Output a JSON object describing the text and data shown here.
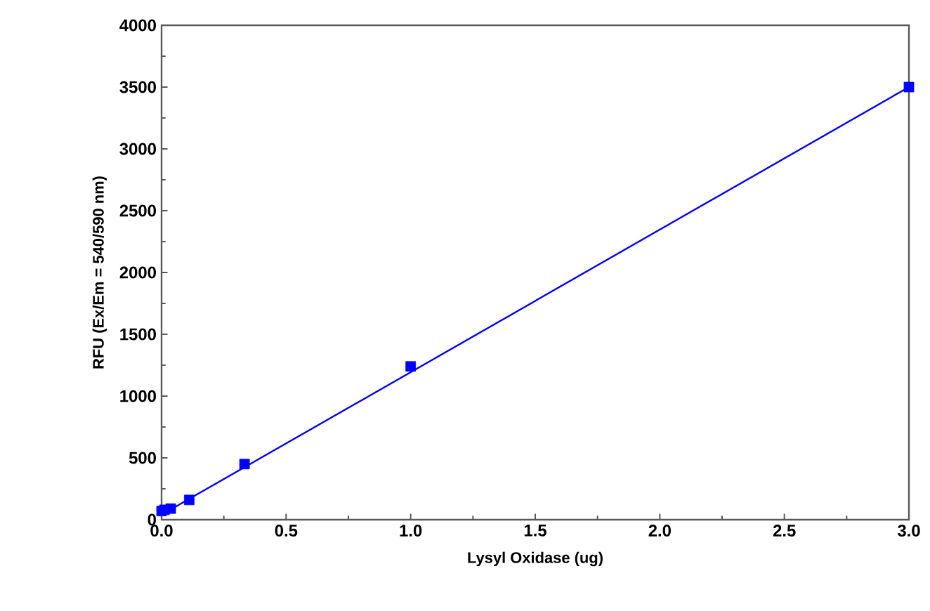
{
  "chart_data": {
    "type": "scatter",
    "xlabel": "Lysyl Oxidase (ug)",
    "ylabel": "RFU (Ex/Em = 540/590 nm)",
    "xlim": [
      0,
      3
    ],
    "ylim": [
      0,
      4000
    ],
    "xticks": [
      {
        "value": 0,
        "label": "0.0"
      },
      {
        "value": 0.5,
        "label": "0.5"
      },
      {
        "value": 1,
        "label": "1.0"
      },
      {
        "value": 1.5,
        "label": "1.5"
      },
      {
        "value": 2,
        "label": "2.0"
      },
      {
        "value": 2.5,
        "label": "2.5"
      },
      {
        "value": 3,
        "label": "3.0"
      }
    ],
    "yticks": [
      0,
      500,
      1000,
      1500,
      2000,
      2500,
      3000,
      3500,
      4000
    ],
    "grid": false,
    "series": [
      {
        "marker": "square",
        "color": "#0000ff",
        "x": [
          0,
          0.012,
          0.037,
          0.111,
          0.333,
          1,
          3
        ],
        "values": [
          70,
          80,
          90,
          160,
          450,
          1240,
          3500
        ]
      },
      {
        "type": "line",
        "marker": "none",
        "color": "#0000ff",
        "x": [
          0,
          3
        ],
        "values": [
          40,
          3500
        ]
      }
    ]
  }
}
